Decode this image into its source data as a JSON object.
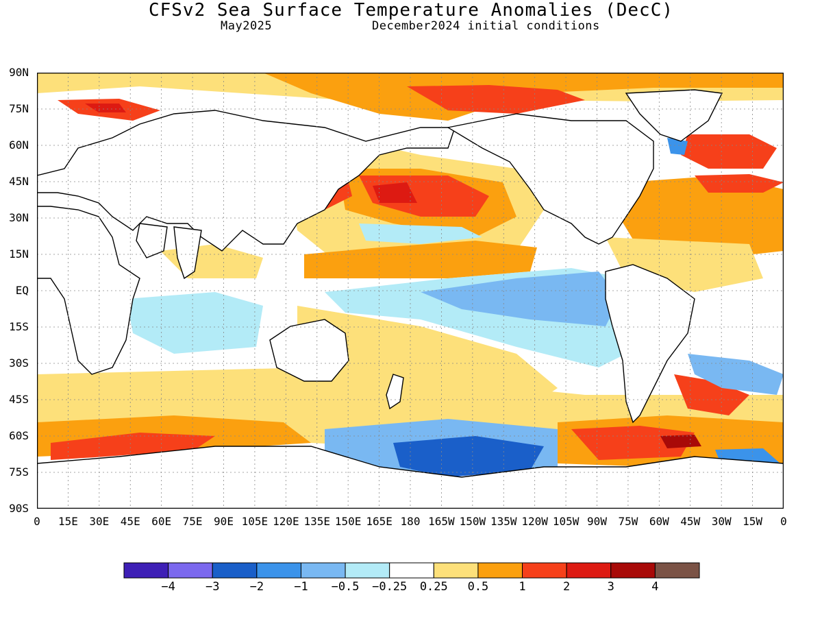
{
  "header": {
    "title": "CFSv2 Sea Surface Temperature Anomalies (DecC)",
    "valid_month": "May2025",
    "init_conditions": "December2024 initial conditions"
  },
  "axes": {
    "lat_labels": [
      "90N",
      "75N",
      "60N",
      "45N",
      "30N",
      "15N",
      "EQ",
      "15S",
      "30S",
      "45S",
      "60S",
      "75S",
      "90S"
    ],
    "lon_labels": [
      "0",
      "15E",
      "30E",
      "45E",
      "60E",
      "75E",
      "90E",
      "105E",
      "120E",
      "135E",
      "150E",
      "165E",
      "180",
      "165W",
      "150W",
      "135W",
      "120W",
      "105W",
      "90W",
      "75W",
      "60W",
      "45W",
      "30W",
      "15W",
      "0"
    ]
  },
  "legend": {
    "colors": [
      "#3e1fb6",
      "#7b68ee",
      "#1a5fc9",
      "#3b93ea",
      "#79b8f2",
      "#b3ebf7",
      "#ffffff",
      "#fde07a",
      "#fba00f",
      "#f6401a",
      "#dd1a12",
      "#a80a08",
      "#7b5346"
    ],
    "labels": [
      "−4",
      "−3",
      "−2",
      "−1",
      "−0.5",
      "−0.25",
      "0.25",
      "0.5",
      "1",
      "2",
      "3",
      "4"
    ]
  },
  "palette": {
    "land": "#ffffff",
    "neutral": "#ffffff",
    "frame": "#000000"
  }
}
